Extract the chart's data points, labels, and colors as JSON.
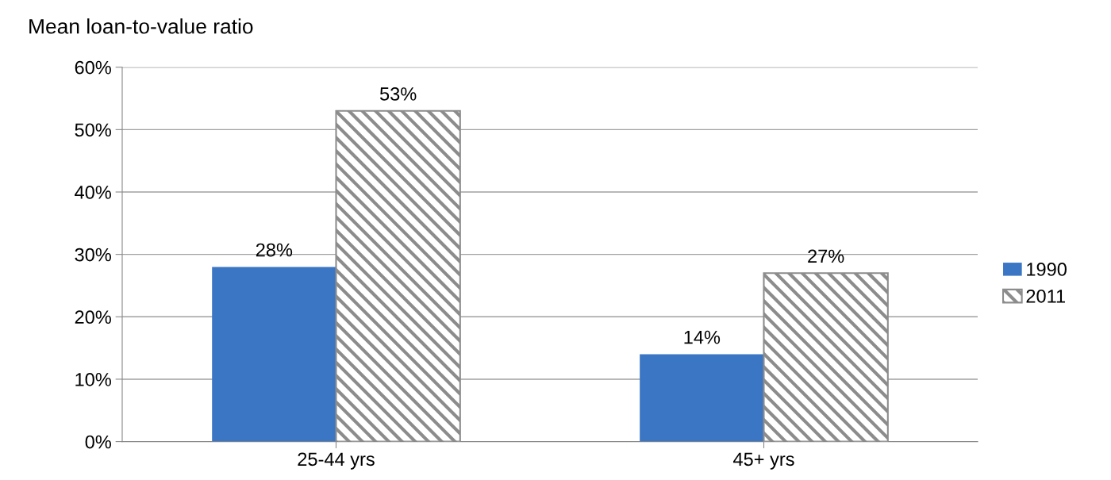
{
  "chart_data": {
    "type": "bar",
    "title": "Mean loan-to-value ratio",
    "categories": [
      "25-44 yrs",
      "45+ yrs"
    ],
    "series": [
      {
        "name": "1990",
        "color": "#3a76c4",
        "values": [
          28,
          14
        ]
      },
      {
        "name": "2011",
        "color": "#8c8c8c",
        "values": [
          53,
          27
        ]
      }
    ],
    "ylim": [
      0,
      60
    ],
    "yticks": [
      {
        "value": 0,
        "label": "0%"
      },
      {
        "value": 10,
        "label": "10%"
      },
      {
        "value": 20,
        "label": "20%"
      },
      {
        "value": 30,
        "label": "30%"
      },
      {
        "value": 40,
        "label": "40%"
      },
      {
        "value": 50,
        "label": "50%"
      },
      {
        "value": 60,
        "label": "60%"
      }
    ],
    "value_labels": [
      [
        "28%",
        "14%"
      ],
      [
        "53%",
        "27%"
      ]
    ],
    "grid": "y",
    "legend": "right"
  }
}
